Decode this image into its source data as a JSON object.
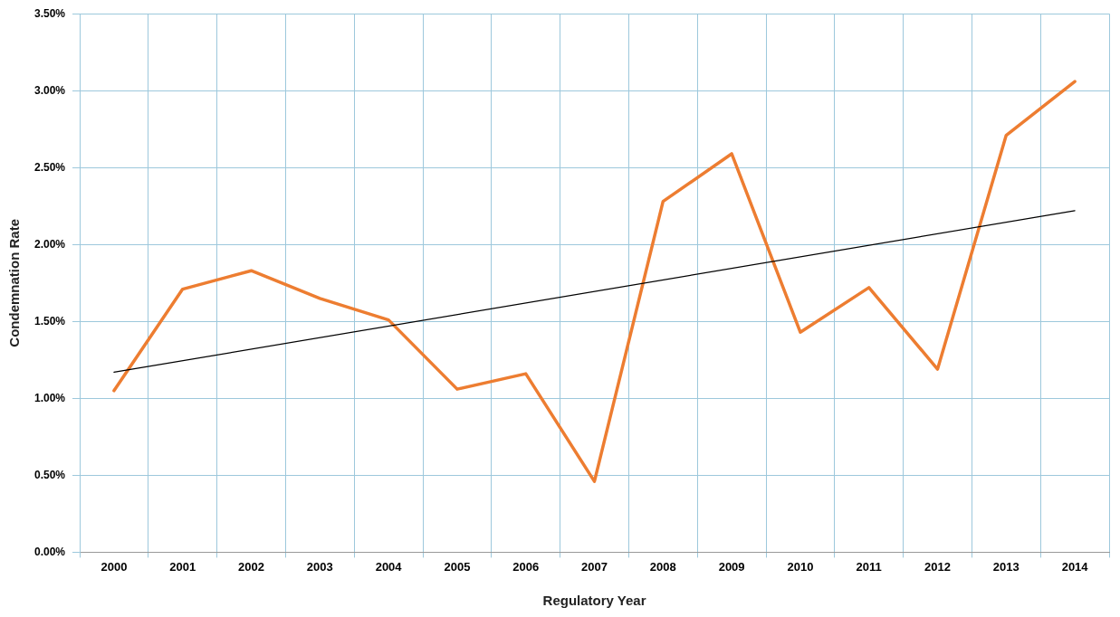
{
  "chart_data": {
    "type": "line",
    "xlabel": "Regulatory Year",
    "ylabel": "Condemnation Rate",
    "categories": [
      "2000",
      "2001",
      "2002",
      "2003",
      "2004",
      "2005",
      "2006",
      "2007",
      "2008",
      "2009",
      "2010",
      "2011",
      "2012",
      "2013",
      "2014"
    ],
    "series": [
      {
        "color": "#ed7d31",
        "values": [
          1.05,
          1.71,
          1.83,
          1.65,
          1.51,
          1.06,
          1.16,
          0.46,
          2.28,
          2.59,
          1.43,
          1.72,
          1.19,
          2.71,
          3.06
        ]
      },
      {
        "type": "line",
        "color": "#000000",
        "values": [
          1.17,
          null,
          null,
          null,
          null,
          null,
          null,
          null,
          null,
          null,
          null,
          null,
          null,
          null,
          2.22
        ]
      }
    ],
    "ylim": [
      0,
      3.5
    ],
    "yticks": [
      {
        "value": 0,
        "label": "0.00%"
      },
      {
        "value": 0.5,
        "label": "0.50%"
      },
      {
        "value": 1,
        "label": "1.00%"
      },
      {
        "value": 1.5,
        "label": "1.50%"
      },
      {
        "value": 2,
        "label": "2.00%"
      },
      {
        "value": 2.5,
        "label": "2.50%"
      },
      {
        "value": 3,
        "label": "3.00%"
      },
      {
        "value": 3.5,
        "label": "3.50%"
      }
    ],
    "grid": true,
    "legend": false,
    "marker": "none",
    "line_style": "solid"
  }
}
